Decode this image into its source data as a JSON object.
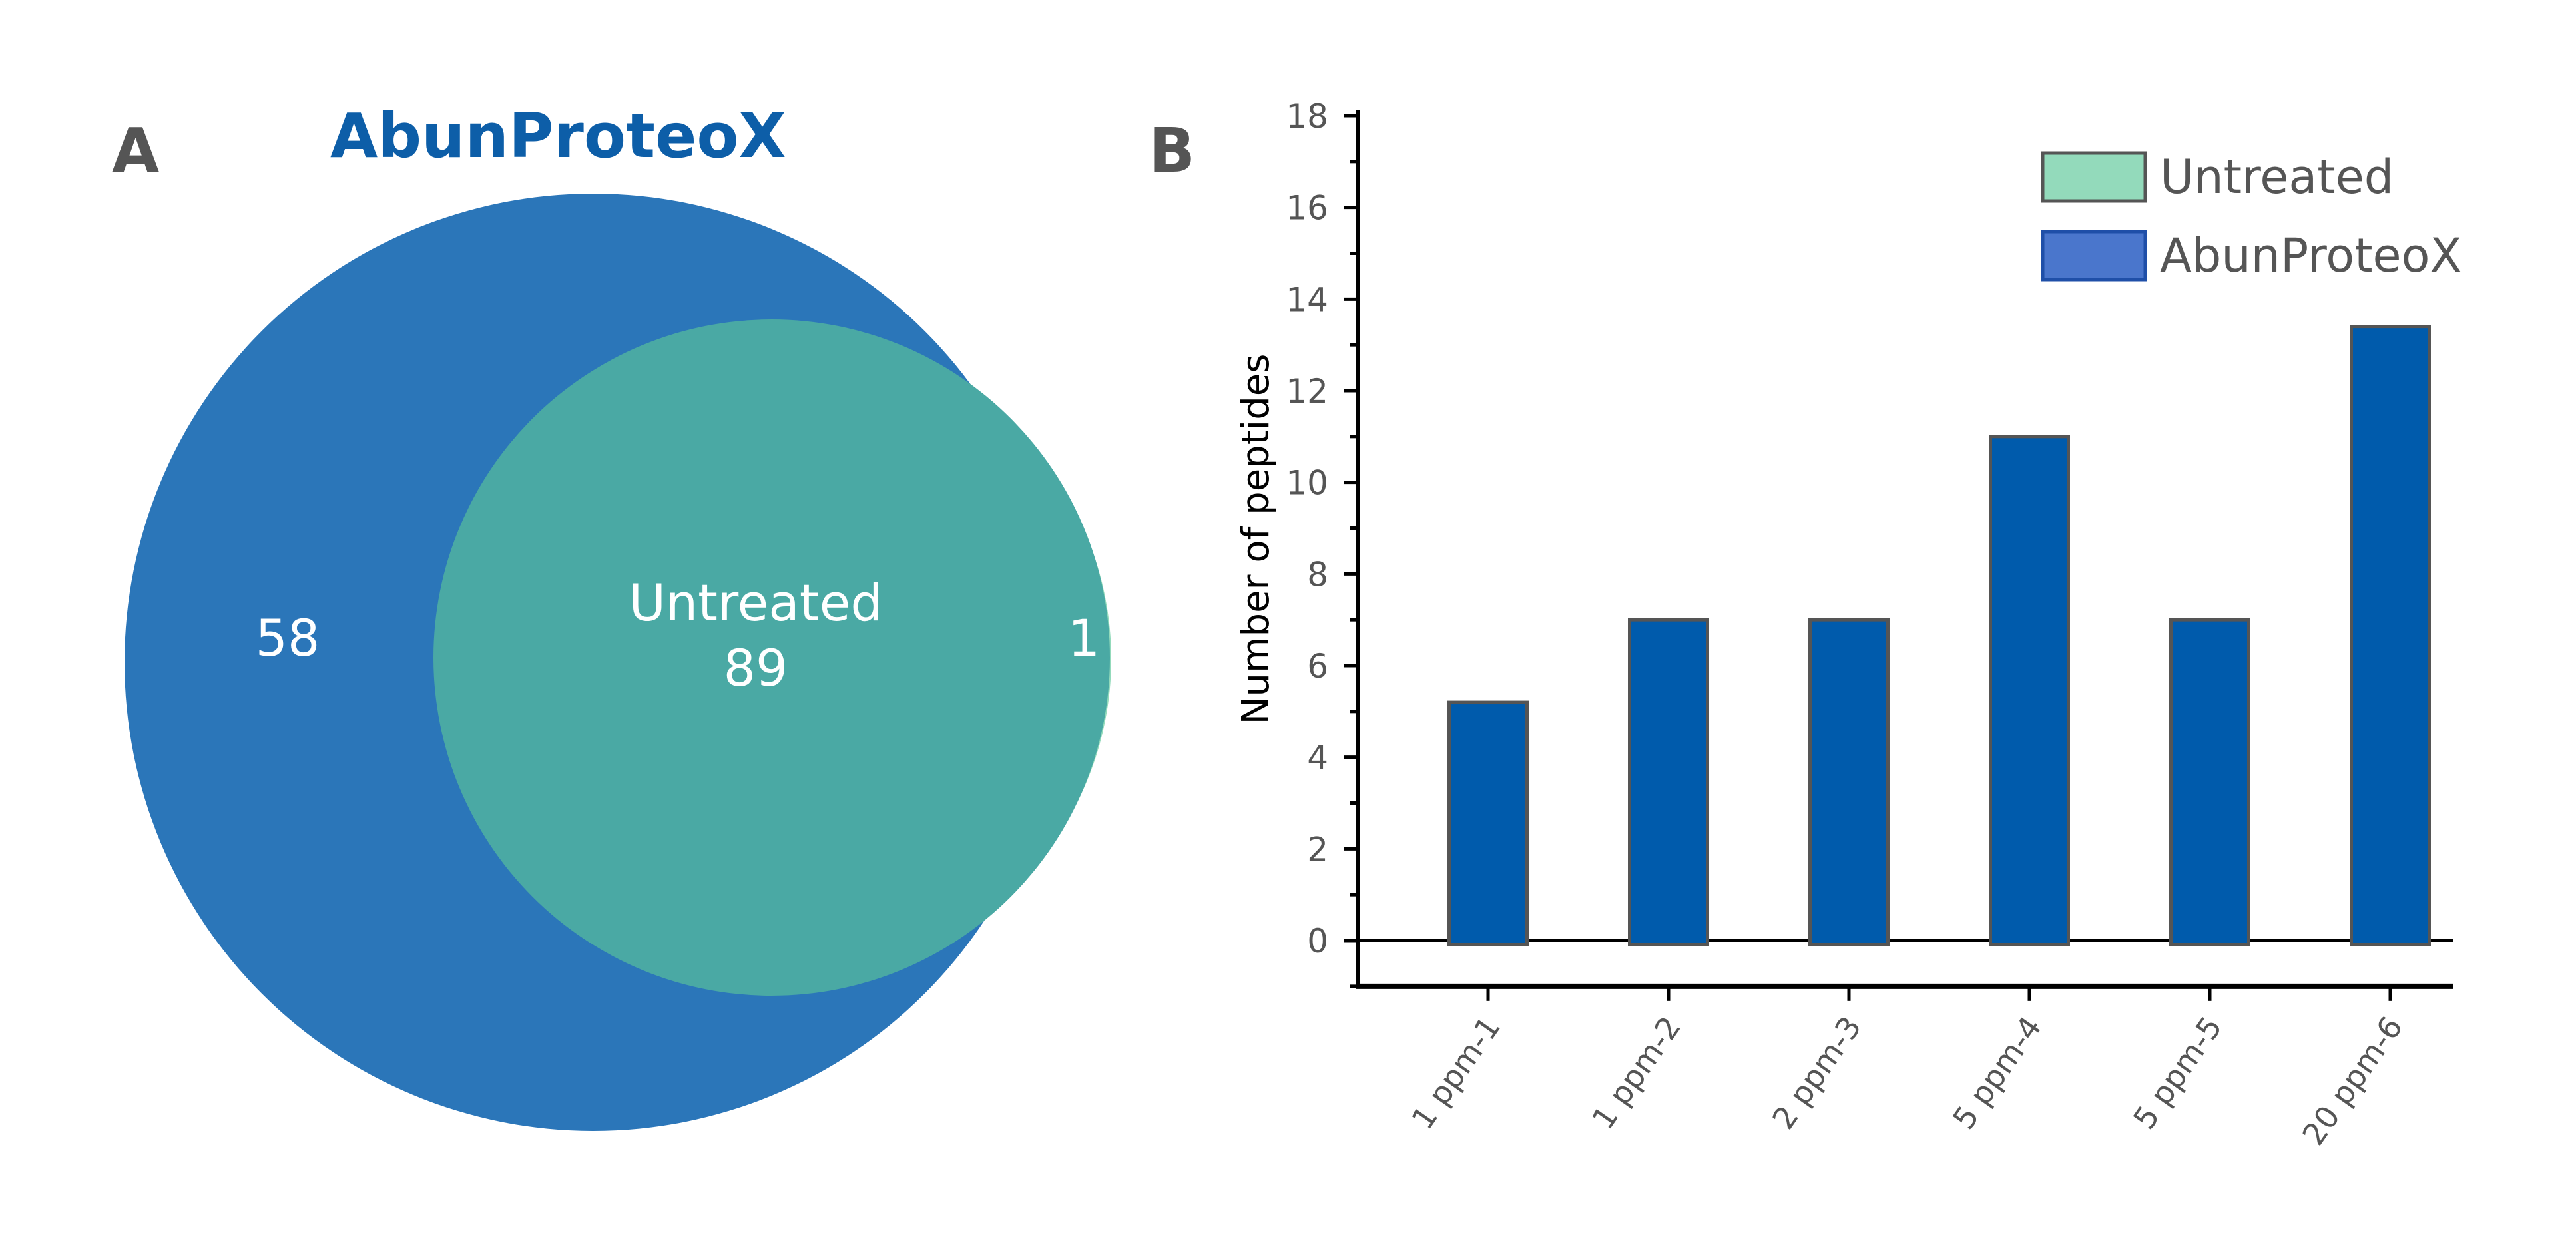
{
  "panel_a": {
    "label": "A",
    "title": "AbunProteoX",
    "sets": [
      {
        "name": "AbunProteoX",
        "only": "58",
        "color": "#2b76b9"
      },
      {
        "name": "Untreated",
        "only": "1",
        "color": "#93dabb"
      }
    ],
    "overlap_label": "Untreated",
    "overlap_value": "89",
    "overlap_color": "#4aa9a4"
  },
  "chart_data": {
    "type": "bar",
    "panel_label": "B",
    "title": "",
    "xlabel": "",
    "ylabel": "Number of peptides",
    "categories": [
      "1 ppm-1",
      "1 ppm-2",
      "2 ppm-3",
      "5 ppm-4",
      "5 ppm-5",
      "20 ppm-6"
    ],
    "series": [
      {
        "name": "Untreated",
        "color": "#93dabb",
        "values": [
          0,
          0,
          0,
          0,
          0,
          0
        ]
      },
      {
        "name": "AbunProteoX",
        "color": "#005bac",
        "values": [
          5.2,
          7,
          7,
          11,
          7,
          13.4
        ]
      }
    ],
    "ylim": [
      -1,
      18
    ],
    "yticks": [
      "0",
      "2",
      "4",
      "6",
      "8",
      "10",
      "12",
      "14",
      "16",
      "18"
    ],
    "legend": {
      "position": "top-right",
      "items": [
        "Untreated",
        "AbunProteoX"
      ],
      "colors": [
        "#93dabb",
        "#4a76cc"
      ]
    },
    "grid": false
  }
}
